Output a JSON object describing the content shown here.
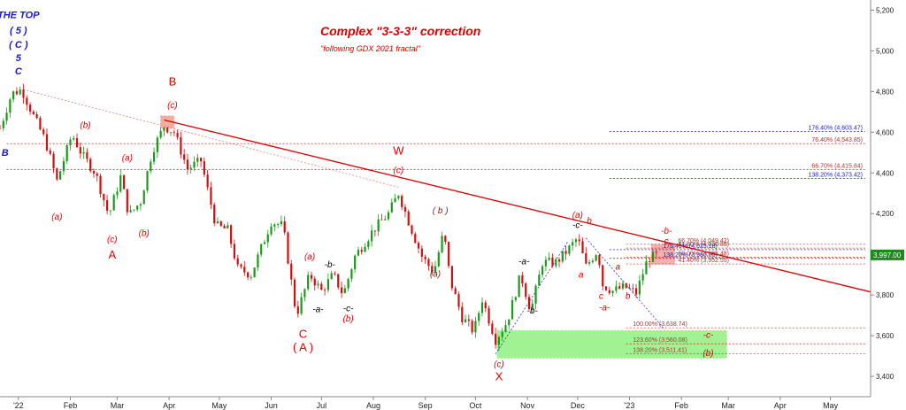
{
  "chart_data": {
    "type": "candlestick",
    "title": "Complex \"3-3-3\" correction",
    "subtitle": "\"following GDX 2021 fractal\"",
    "ylim": [
      3300,
      5250
    ],
    "y_ticks": [
      3400,
      3600,
      3800,
      4000,
      4200,
      4400,
      4600,
      4800,
      5000,
      5200
    ],
    "y_tick_labels": [
      "3,400",
      "3,600",
      "3,800",
      "4,000",
      "4,200",
      "4,400",
      "4,600",
      "4,800",
      "5,000",
      "5,200"
    ],
    "x_range": [
      "2021-12-21",
      "2023-05-25"
    ],
    "x_ticks": [
      {
        "date": "2022-01-01",
        "label": "'22"
      },
      {
        "date": "2022-02-01",
        "label": "Feb"
      },
      {
        "date": "2022-03-01",
        "label": "Mar"
      },
      {
        "date": "2022-04-01",
        "label": "Apr"
      },
      {
        "date": "2022-05-01",
        "label": "May"
      },
      {
        "date": "2022-06-01",
        "label": "Jun"
      },
      {
        "date": "2022-07-01",
        "label": "Jul"
      },
      {
        "date": "2022-08-01",
        "label": "Aug"
      },
      {
        "date": "2022-09-01",
        "label": "Sep"
      },
      {
        "date": "2022-10-01",
        "label": "Oct"
      },
      {
        "date": "2022-11-01",
        "label": "Nov"
      },
      {
        "date": "2022-12-01",
        "label": "Dec"
      },
      {
        "date": "2023-01-01",
        "label": "'23"
      },
      {
        "date": "2023-02-01",
        "label": "Feb"
      },
      {
        "date": "2023-03-01",
        "label": "Mar"
      },
      {
        "date": "2023-04-01",
        "label": "Apr"
      },
      {
        "date": "2023-05-01",
        "label": "May"
      }
    ],
    "price_path": [
      {
        "date": "2021-12-21",
        "price": 4620
      },
      {
        "date": "2021-12-28",
        "price": 4790
      },
      {
        "date": "2022-01-03",
        "price": 4810
      },
      {
        "date": "2022-01-10",
        "price": 4680
      },
      {
        "date": "2022-01-17",
        "price": 4560
      },
      {
        "date": "2022-01-24",
        "price": 4360
      },
      {
        "date": "2022-02-02",
        "price": 4590
      },
      {
        "date": "2022-02-08",
        "price": 4490
      },
      {
        "date": "2022-02-16",
        "price": 4400
      },
      {
        "date": "2022-02-24",
        "price": 4190
      },
      {
        "date": "2022-03-03",
        "price": 4380
      },
      {
        "date": "2022-03-08",
        "price": 4190
      },
      {
        "date": "2022-03-15",
        "price": 4260
      },
      {
        "date": "2022-03-22",
        "price": 4510
      },
      {
        "date": "2022-03-29",
        "price": 4630
      },
      {
        "date": "2022-04-04",
        "price": 4600
      },
      {
        "date": "2022-04-12",
        "price": 4420
      },
      {
        "date": "2022-04-20",
        "price": 4460
      },
      {
        "date": "2022-04-29",
        "price": 4140
      },
      {
        "date": "2022-05-06",
        "price": 4120
      },
      {
        "date": "2022-05-12",
        "price": 3930
      },
      {
        "date": "2022-05-20",
        "price": 3900
      },
      {
        "date": "2022-06-01",
        "price": 4160
      },
      {
        "date": "2022-06-08",
        "price": 4140
      },
      {
        "date": "2022-06-16",
        "price": 3700
      },
      {
        "date": "2022-06-24",
        "price": 3900
      },
      {
        "date": "2022-07-01",
        "price": 3820
      },
      {
        "date": "2022-07-08",
        "price": 3900
      },
      {
        "date": "2022-07-14",
        "price": 3800
      },
      {
        "date": "2022-07-21",
        "price": 3990
      },
      {
        "date": "2022-08-01",
        "price": 4120
      },
      {
        "date": "2022-08-10",
        "price": 4200
      },
      {
        "date": "2022-08-16",
        "price": 4300
      },
      {
        "date": "2022-08-23",
        "price": 4140
      },
      {
        "date": "2022-08-30",
        "price": 3990
      },
      {
        "date": "2022-09-06",
        "price": 3910
      },
      {
        "date": "2022-09-12",
        "price": 4110
      },
      {
        "date": "2022-09-16",
        "price": 3870
      },
      {
        "date": "2022-09-23",
        "price": 3690
      },
      {
        "date": "2022-09-30",
        "price": 3620
      },
      {
        "date": "2022-10-05",
        "price": 3780
      },
      {
        "date": "2022-10-13",
        "price": 3580
      },
      {
        "date": "2022-10-20",
        "price": 3670
      },
      {
        "date": "2022-10-28",
        "price": 3900
      },
      {
        "date": "2022-11-03",
        "price": 3720
      },
      {
        "date": "2022-11-10",
        "price": 3960
      },
      {
        "date": "2022-11-18",
        "price": 3960
      },
      {
        "date": "2022-11-25",
        "price": 4020
      },
      {
        "date": "2022-12-01",
        "price": 4080
      },
      {
        "date": "2022-12-06",
        "price": 3940
      },
      {
        "date": "2022-12-13",
        "price": 4020
      },
      {
        "date": "2022-12-16",
        "price": 3850
      },
      {
        "date": "2022-12-22",
        "price": 3820
      },
      {
        "date": "2022-12-29",
        "price": 3840
      },
      {
        "date": "2023-01-05",
        "price": 3810
      },
      {
        "date": "2023-01-12",
        "price": 3980
      },
      {
        "date": "2023-01-18",
        "price": 3997
      }
    ],
    "last_price_label": "3,997.00",
    "trendlines": [
      {
        "from": {
          "date": "2022-03-29",
          "price": 4660
        },
        "to": {
          "date": "2023-05-25",
          "price": 3815
        },
        "color": "#e00000",
        "style": "solid"
      },
      {
        "from": {
          "date": "2022-01-04",
          "price": 4810
        },
        "to": {
          "date": "2022-08-16",
          "price": 4330
        },
        "color": "#e08080",
        "style": "dotted"
      },
      {
        "from": {
          "date": "2022-10-13",
          "price": 3510
        },
        "to": {
          "date": "2022-11-25",
          "price": 4060
        },
        "color": "#3030c0",
        "style": "dotted"
      },
      {
        "from": {
          "date": "2022-12-06",
          "price": 4080
        },
        "to": {
          "date": "2023-01-22",
          "price": 3630
        },
        "color": "#3030c0",
        "style": "dotted"
      }
    ],
    "fib_levels": [
      {
        "label": "176.40% (4,603.47)",
        "value": 4603.47,
        "color": "#2020cc"
      },
      {
        "label": "76.40% (4,543.85)",
        "value": 4543.85,
        "color": "#b03030"
      },
      {
        "label": "66.70% (4,415.84)",
        "value": 4415.84,
        "color": "#b03030"
      },
      {
        "label": "138.20% (4,373.42)",
        "value": 4373.42,
        "color": "#2020cc"
      },
      {
        "label": "66.70% (4,049.42)",
        "value": 4049.42,
        "color": "#b03030"
      },
      {
        "label": "61.80% (4,030.86)",
        "value": 4030.86,
        "color": "#b03030"
      },
      {
        "label": "176.40% (4,023.18)",
        "value": 4023.18,
        "color": "#2020cc"
      },
      {
        "label": "138.20% (3,980.05)",
        "value": 3980.05,
        "color": "#2020cc"
      },
      {
        "label": "50.00% (3,985.48)",
        "value": 3985.48,
        "color": "#b03030"
      },
      {
        "label": "41.40% (3,952.55)",
        "value": 3952.55,
        "color": "#b03030"
      },
      {
        "label": "100.00% (3,638.74)",
        "value": 3638.74,
        "color": "#b03030"
      },
      {
        "label": "123.60% (3,560.08)",
        "value": 3560.08,
        "color": "#b03030"
      },
      {
        "label": "138.20% (3,511.41)",
        "value": 3511.41,
        "color": "#b03030"
      }
    ],
    "zones": [
      {
        "from": "2022-03-27",
        "to": "2022-04-04",
        "low": 4620,
        "high": 4680,
        "color": "#f0a090"
      },
      {
        "from": "2023-01-14",
        "to": "2023-01-28",
        "low": 3952,
        "high": 4049,
        "color": "#f4a0a0"
      },
      {
        "from": "2022-10-14",
        "to": "2023-02-28",
        "low": 3490,
        "high": 3625,
        "color": "#90f080"
      }
    ],
    "annotations": [
      {
        "text": "THE TOP",
        "date": "2022-01-01",
        "price": 5160,
        "color": "#1a1acc",
        "style": "topl"
      },
      {
        "text": "( 5 )",
        "date": "2022-01-01",
        "price": 5085,
        "color": "#1a1acc",
        "style": "topl"
      },
      {
        "text": "( C )",
        "date": "2022-01-01",
        "price": 5015,
        "color": "#1a1acc",
        "style": "topl"
      },
      {
        "text": "5",
        "date": "2022-01-01",
        "price": 4950,
        "color": "#1a1acc",
        "style": "topl"
      },
      {
        "text": "C",
        "date": "2022-01-01",
        "price": 4885,
        "color": "#1a1acc",
        "style": "topl"
      },
      {
        "text": "B",
        "date": "2021-12-24",
        "price": 4485,
        "color": "#1a1acc",
        "style": "topl"
      },
      {
        "text": "(b)",
        "date": "2022-02-10",
        "price": 4620,
        "color": "#e00000",
        "style": "wave"
      },
      {
        "text": "(a)",
        "date": "2022-01-24",
        "price": 4170,
        "color": "#e00000",
        "style": "wave"
      },
      {
        "text": "(a)",
        "date": "2022-03-07",
        "price": 4460,
        "color": "#e00000",
        "style": "wave"
      },
      {
        "text": "(c)",
        "date": "2022-02-26",
        "price": 4060,
        "color": "#e00000",
        "style": "wave"
      },
      {
        "text": "(b)",
        "date": "2022-03-17",
        "price": 4090,
        "color": "#e00000",
        "style": "wave"
      },
      {
        "text": "A",
        "date": "2022-02-26",
        "price": 3980,
        "color": "#e00000",
        "style": "wavebig"
      },
      {
        "text": "B",
        "date": "2022-04-03",
        "price": 4830,
        "color": "#e00000",
        "style": "wavebig"
      },
      {
        "text": "(c)",
        "date": "2022-04-03",
        "price": 4720,
        "color": "#e00000",
        "style": "wave"
      },
      {
        "text": "W",
        "date": "2022-08-16",
        "price": 4490,
        "color": "#e00000",
        "style": "wavebig"
      },
      {
        "text": "(c)",
        "date": "2022-08-16",
        "price": 4400,
        "color": "#e00000",
        "style": "wave"
      },
      {
        "text": "( b )",
        "date": "2022-09-10",
        "price": 4200,
        "color": "#8b1a1a",
        "style": "wave"
      },
      {
        "text": "(a)",
        "date": "2022-09-07",
        "price": 3890,
        "color": "#8b1a1a",
        "style": "wave"
      },
      {
        "text": "(a)",
        "date": "2022-06-24",
        "price": 3975,
        "color": "#e00000",
        "style": "wave"
      },
      {
        "text": "-b-",
        "date": "2022-07-06",
        "price": 3935,
        "color": "#000000",
        "style": "wave"
      },
      {
        "text": "-a-",
        "date": "2022-06-29",
        "price": 3715,
        "color": "#000000",
        "style": "wave"
      },
      {
        "text": "-c-",
        "date": "2022-07-17",
        "price": 3720,
        "color": "#000000",
        "style": "wave"
      },
      {
        "text": "(b)",
        "date": "2022-07-17",
        "price": 3670,
        "color": "#e00000",
        "style": "wave"
      },
      {
        "text": "C",
        "date": "2022-06-20",
        "price": 3590,
        "color": "#e00000",
        "style": "wavebig"
      },
      {
        "text": "( A )",
        "date": "2022-06-20",
        "price": 3525,
        "color": "#e00000",
        "style": "wavebig"
      },
      {
        "text": "-a-",
        "date": "2022-10-30",
        "price": 3950,
        "color": "#000000",
        "style": "wave"
      },
      {
        "text": "-b-",
        "date": "2022-11-04",
        "price": 3710,
        "color": "#000000",
        "style": "wave"
      },
      {
        "text": "(c)",
        "date": "2022-10-15",
        "price": 3445,
        "color": "#8b1a1a",
        "style": "wave"
      },
      {
        "text": "X",
        "date": "2022-10-15",
        "price": 3380,
        "color": "#e00000",
        "style": "wavebig"
      },
      {
        "text": "(a)",
        "date": "2022-12-01",
        "price": 4180,
        "color": "#e00000",
        "style": "wave"
      },
      {
        "text": "-c-",
        "date": "2022-12-01",
        "price": 4130,
        "color": "#000000",
        "style": "wave"
      },
      {
        "text": "b",
        "date": "2022-12-08",
        "price": 4150,
        "color": "#e00000",
        "style": "wave"
      },
      {
        "text": "a",
        "date": "2022-12-03",
        "price": 3885,
        "color": "#e00000",
        "style": "wave"
      },
      {
        "text": "-a-",
        "date": "2022-12-17",
        "price": 3725,
        "color": "#e00000",
        "style": "wave"
      },
      {
        "text": "c",
        "date": "2022-12-15",
        "price": 3780,
        "color": "#e00000",
        "style": "wave"
      },
      {
        "text": "a",
        "date": "2022-12-25",
        "price": 3925,
        "color": "#e00000",
        "style": "wave"
      },
      {
        "text": "b",
        "date": "2022-12-31",
        "price": 3780,
        "color": "#e00000",
        "style": "wave"
      },
      {
        "text": "-b-",
        "date": "2023-01-23",
        "price": 4100,
        "color": "#e00000",
        "style": "wave"
      },
      {
        "text": "c",
        "date": "2023-01-23",
        "price": 4050,
        "color": "#e00000",
        "style": "wave"
      },
      {
        "text": "-c-",
        "date": "2023-02-17",
        "price": 3590,
        "color": "#e00000",
        "style": "wave"
      },
      {
        "text": "(b)",
        "date": "2023-02-17",
        "price": 3500,
        "color": "#e00000",
        "style": "wave"
      }
    ]
  }
}
